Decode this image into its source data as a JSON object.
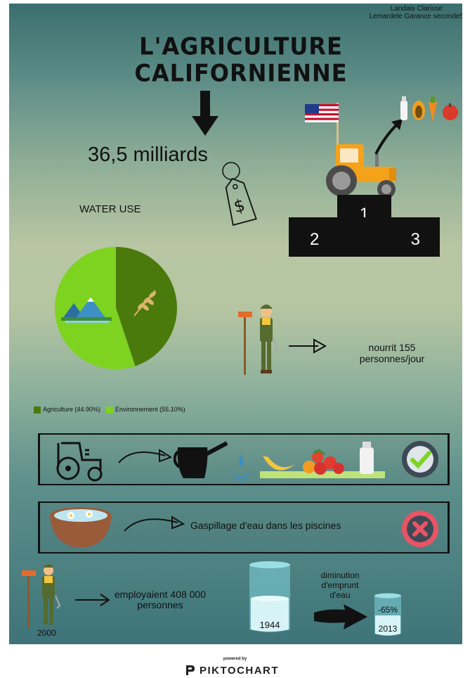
{
  "authors": {
    "line1": "Landais Clarisse",
    "line2": "Lemardele Garance seconde5"
  },
  "title": {
    "line1": "L'AGRICULTURE",
    "line2": "CALIFORNIENNE"
  },
  "big_amount": "36,5 milliards",
  "podium": {
    "first": "1",
    "second": "2",
    "third": "3"
  },
  "water_use_title": "WATER USE",
  "chart_data": {
    "type": "pie",
    "title": "WATER USE",
    "labels": [
      "Agriculture",
      "Environnement"
    ],
    "values": [
      44.9,
      55.1
    ],
    "colors": [
      "#4a7a0c",
      "#7ed321"
    ],
    "legend": [
      "Agriculture (44.90%)",
      "Environnement (55.10%)"
    ],
    "legend_placement": "bottom-left"
  },
  "farmer_fact": {
    "line1": "nourrit 155",
    "line2": "personnes/jour"
  },
  "waste_text": "Gaspillage d'eau dans les piscines",
  "employment": {
    "line1": "employaient 408 000",
    "line2": "personnes",
    "year": "2000"
  },
  "water_reduction": {
    "label_line1": "diminution",
    "label_line2": "d'emprunt",
    "label_line3": "d'eau",
    "year_before": "1944",
    "year_after": "2013",
    "change": "-65%"
  },
  "footer": {
    "powered_by": "powered by",
    "brand": "PIKTOCHART"
  },
  "colors": {
    "tractor": "#f5a21b",
    "check_circle": "#3d4a55",
    "check_mark": "#7ed321",
    "cross_circle": "#e85466",
    "water_glass": "#7fd4dc"
  }
}
